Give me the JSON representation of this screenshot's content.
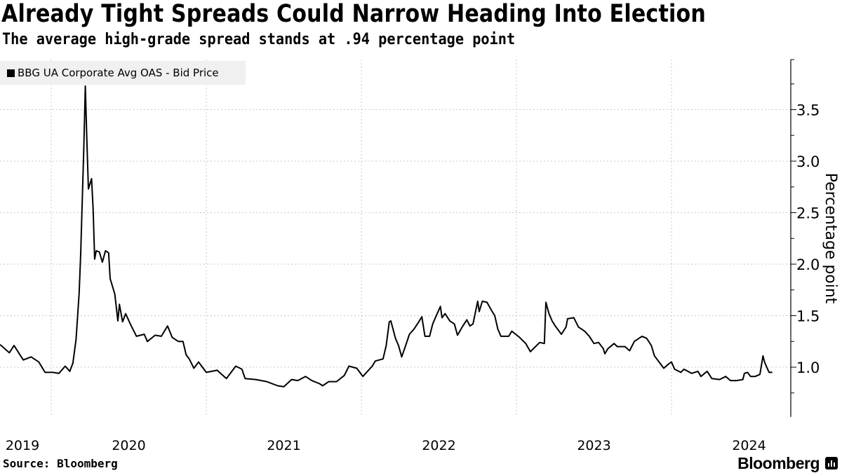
{
  "header": {
    "title": "Already Tight Spreads Could Narrow Heading Into Election",
    "subtitle": "The average high-grade spread stands at .94 percentage point"
  },
  "footer": {
    "source": "Source: Bloomberg",
    "brand": "Bloomberg"
  },
  "chart_data": {
    "type": "line",
    "title": "Already Tight Spreads Could Narrow Heading Into Election",
    "subtitle": "The average high-grade spread stands at .94 percentage point",
    "xlabel": "",
    "ylabel": "Percentage point",
    "xlim": [
      2019.67,
      2024.75
    ],
    "ylim": [
      0.5,
      4.0
    ],
    "x_ticks": [
      "2019",
      "2020",
      "2021",
      "2022",
      "2023",
      "2024"
    ],
    "y_ticks": [
      "1.0",
      "1.5",
      "2.0",
      "2.5",
      "3.0",
      "3.5"
    ],
    "grid": true,
    "legend_position": "top-left",
    "line_color": "#000000",
    "series": [
      {
        "name": "BBG UA Corporate Avg OAS - Bid Price",
        "x": [
          2019.67,
          2019.73,
          2019.76,
          2019.82,
          2019.87,
          2019.92,
          2019.96,
          2020.01,
          2020.05,
          2020.09,
          2020.12,
          2020.14,
          2020.16,
          2020.18,
          2020.19,
          2020.21,
          2020.22,
          2020.23,
          2020.24,
          2020.26,
          2020.27,
          2020.28,
          2020.29,
          2020.31,
          2020.33,
          2020.35,
          2020.37,
          2020.38,
          2020.41,
          2020.43,
          2020.44,
          2020.46,
          2020.48,
          2020.51,
          2020.55,
          2020.6,
          2020.62,
          2020.67,
          2020.71,
          2020.75,
          2020.78,
          2020.82,
          2020.85,
          2020.87,
          2020.89,
          2020.92,
          2020.95,
          2021.0,
          2021.07,
          2021.13,
          2021.19,
          2021.23,
          2021.25,
          2021.32,
          2021.39,
          2021.46,
          2021.5,
          2021.55,
          2021.59,
          2021.64,
          2021.68,
          2021.73,
          2021.75,
          2021.79,
          2021.84,
          2021.89,
          2021.92,
          2021.97,
          2022.01,
          2022.07,
          2022.09,
          2022.14,
          2022.16,
          2022.18,
          2022.19,
          2022.22,
          2022.24,
          2022.26,
          2022.29,
          2022.31,
          2022.34,
          2022.37,
          2022.39,
          2022.41,
          2022.44,
          2022.46,
          2022.48,
          2022.51,
          2022.52,
          2022.54,
          2022.57,
          2022.6,
          2022.62,
          2022.65,
          2022.68,
          2022.7,
          2022.72,
          2022.75,
          2022.76,
          2022.78,
          2022.81,
          2022.84,
          2022.86,
          2022.88,
          2022.9,
          2022.95,
          2022.97,
          2023.02,
          2023.06,
          2023.09,
          2023.13,
          2023.15,
          2023.18,
          2023.19,
          2023.21,
          2023.23,
          2023.25,
          2023.29,
          2023.32,
          2023.33,
          2023.37,
          2023.4,
          2023.44,
          2023.47,
          2023.5,
          2023.53,
          2023.56,
          2023.57,
          2023.59,
          2023.63,
          2023.65,
          2023.7,
          2023.73,
          2023.76,
          2023.79,
          2023.81,
          2023.84,
          2023.87,
          2023.89,
          2023.92,
          2023.95,
          2023.98,
          2024.0,
          2024.02,
          2024.06,
          2024.08,
          2024.13,
          2024.17,
          2024.19,
          2024.23,
          2024.26,
          2024.31,
          2024.35,
          2024.38,
          2024.42,
          2024.46,
          2024.47,
          2024.49,
          2024.51,
          2024.54,
          2024.57,
          2024.59,
          2024.6,
          2024.62,
          2024.63,
          2024.65
        ],
        "values": [
          1.22,
          1.14,
          1.21,
          1.07,
          1.1,
          1.05,
          0.95,
          0.95,
          0.94,
          1.01,
          0.96,
          1.04,
          1.27,
          1.72,
          2.1,
          3.12,
          3.73,
          3.2,
          2.73,
          2.83,
          2.54,
          2.05,
          2.13,
          2.12,
          2.02,
          2.13,
          2.11,
          1.86,
          1.71,
          1.45,
          1.61,
          1.44,
          1.52,
          1.42,
          1.3,
          1.32,
          1.25,
          1.31,
          1.3,
          1.4,
          1.29,
          1.25,
          1.25,
          1.12,
          1.08,
          0.99,
          1.05,
          0.95,
          0.97,
          0.89,
          1.01,
          0.98,
          0.89,
          0.88,
          0.86,
          0.82,
          0.81,
          0.88,
          0.87,
          0.91,
          0.87,
          0.84,
          0.82,
          0.86,
          0.86,
          0.92,
          1.01,
          0.99,
          0.91,
          1.01,
          1.06,
          1.08,
          1.21,
          1.44,
          1.45,
          1.28,
          1.21,
          1.1,
          1.23,
          1.32,
          1.37,
          1.44,
          1.49,
          1.3,
          1.3,
          1.42,
          1.49,
          1.59,
          1.48,
          1.52,
          1.45,
          1.42,
          1.31,
          1.39,
          1.46,
          1.4,
          1.42,
          1.64,
          1.54,
          1.64,
          1.63,
          1.55,
          1.5,
          1.37,
          1.3,
          1.3,
          1.35,
          1.29,
          1.23,
          1.15,
          1.21,
          1.24,
          1.23,
          1.63,
          1.52,
          1.45,
          1.4,
          1.32,
          1.39,
          1.47,
          1.48,
          1.39,
          1.35,
          1.3,
          1.23,
          1.24,
          1.18,
          1.13,
          1.18,
          1.23,
          1.2,
          1.2,
          1.16,
          1.25,
          1.28,
          1.3,
          1.28,
          1.21,
          1.11,
          1.05,
          0.99,
          1.03,
          1.05,
          0.98,
          0.95,
          0.98,
          0.94,
          0.96,
          0.91,
          0.96,
          0.89,
          0.88,
          0.91,
          0.87,
          0.87,
          0.88,
          0.94,
          0.95,
          0.91,
          0.91,
          0.93,
          1.11,
          1.05,
          0.98,
          0.95,
          0.95
        ]
      }
    ]
  }
}
